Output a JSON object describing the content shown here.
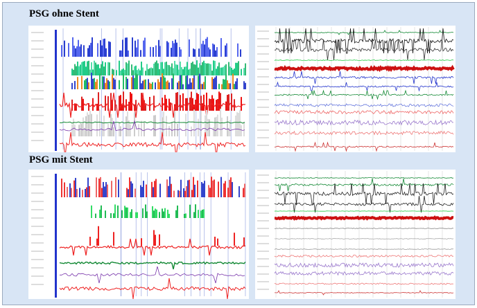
{
  "panels": [
    {
      "title": "PSG ohne Stent"
    },
    {
      "title": "PSG mit Stent"
    }
  ]
}
